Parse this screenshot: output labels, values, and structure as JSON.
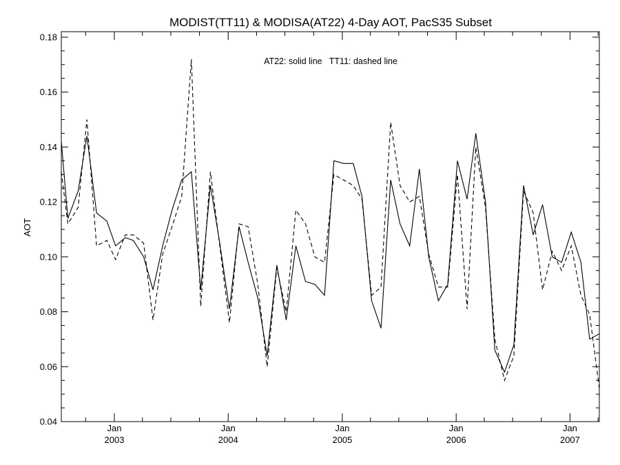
{
  "chart_data": {
    "type": "line",
    "title": "MODIST(TT11) & MODISA(AT22) 4-Day AOT, PacS35 Subset",
    "annotation": "AT22: solid line   TT11: dashed line",
    "xlabel": "",
    "ylabel": "AOT",
    "xlim": [
      "2002-07-15",
      "2007-04-05"
    ],
    "ylim": [
      0.04,
      0.182
    ],
    "yticks": [
      0.04,
      0.06,
      0.08,
      0.1,
      0.12,
      0.14,
      0.16,
      0.18
    ],
    "ytick_labels": [
      "0.04",
      "0.06",
      "0.08",
      "0.10",
      "0.12",
      "0.14",
      "0.16",
      "0.18"
    ],
    "xticks": [
      {
        "date": "2003-01-01",
        "month": "Jan",
        "year": "2003"
      },
      {
        "date": "2004-01-01",
        "month": "Jan",
        "year": "2004"
      },
      {
        "date": "2005-01-01",
        "month": "Jan",
        "year": "2005"
      },
      {
        "date": "2006-01-01",
        "month": "Jan",
        "year": "2006"
      },
      {
        "date": "2007-01-01",
        "month": "Jan",
        "year": "2007"
      }
    ],
    "grid": false,
    "series": [
      {
        "name": "AT22",
        "style": "solid",
        "color": "#000000",
        "x": [
          "2002-07-15",
          "2002-08-05",
          "2002-09-07",
          "2002-10-05",
          "2002-11-05",
          "2002-12-08",
          "2003-01-05",
          "2003-02-05",
          "2003-03-03",
          "2003-04-05",
          "2003-05-05",
          "2003-06-05",
          "2003-07-05",
          "2003-08-05",
          "2003-09-05",
          "2003-10-05",
          "2003-11-05",
          "2003-12-05",
          "2004-01-05",
          "2004-02-05",
          "2004-03-05",
          "2004-04-05",
          "2004-05-05",
          "2004-06-05",
          "2004-07-05",
          "2004-08-05",
          "2004-09-05",
          "2004-10-05",
          "2004-11-05",
          "2004-12-05",
          "2005-01-05",
          "2005-02-05",
          "2005-03-05",
          "2005-04-05",
          "2005-05-05",
          "2005-06-05",
          "2005-07-05",
          "2005-08-05",
          "2005-09-05",
          "2005-10-05",
          "2005-11-05",
          "2005-12-05",
          "2006-01-05",
          "2006-02-05",
          "2006-03-05",
          "2006-04-05",
          "2006-05-05",
          "2006-06-05",
          "2006-07-05",
          "2006-08-05",
          "2006-09-05",
          "2006-10-05",
          "2006-11-05",
          "2006-12-05",
          "2007-01-05",
          "2007-02-05",
          "2007-03-05",
          "2007-04-05"
        ],
        "y": [
          0.142,
          0.114,
          0.124,
          0.144,
          0.116,
          0.113,
          0.104,
          0.107,
          0.106,
          0.1,
          0.088,
          0.104,
          0.117,
          0.128,
          0.131,
          0.088,
          0.126,
          0.105,
          0.081,
          0.111,
          0.098,
          0.085,
          0.064,
          0.097,
          0.077,
          0.104,
          0.091,
          0.09,
          0.086,
          0.135,
          0.134,
          0.134,
          0.122,
          0.084,
          0.074,
          0.128,
          0.112,
          0.104,
          0.132,
          0.1,
          0.084,
          0.09,
          0.135,
          0.121,
          0.145,
          0.12,
          0.066,
          0.058,
          0.068,
          0.126,
          0.108,
          0.119,
          0.1,
          0.098,
          0.109,
          0.098,
          0.07,
          0.072
        ]
      },
      {
        "name": "TT11",
        "style": "dashed",
        "color": "#000000",
        "x": [
          "2002-07-15",
          "2002-08-05",
          "2002-09-07",
          "2002-10-05",
          "2002-11-05",
          "2002-12-08",
          "2003-01-05",
          "2003-02-05",
          "2003-03-03",
          "2003-04-05",
          "2003-05-05",
          "2003-06-05",
          "2003-07-05",
          "2003-08-05",
          "2003-09-05",
          "2003-10-05",
          "2003-11-05",
          "2003-12-05",
          "2004-01-05",
          "2004-02-05",
          "2004-03-05",
          "2004-04-05",
          "2004-05-05",
          "2004-06-05",
          "2004-07-05",
          "2004-08-05",
          "2004-09-05",
          "2004-10-05",
          "2004-11-05",
          "2004-12-05",
          "2005-01-05",
          "2005-02-05",
          "2005-03-05",
          "2005-04-05",
          "2005-05-05",
          "2005-06-05",
          "2005-07-05",
          "2005-08-05",
          "2005-09-05",
          "2005-10-05",
          "2005-11-05",
          "2005-12-05",
          "2006-01-05",
          "2006-02-05",
          "2006-03-05",
          "2006-04-05",
          "2006-05-05",
          "2006-06-05",
          "2006-07-05",
          "2006-08-05",
          "2006-09-05",
          "2006-10-05",
          "2006-11-05",
          "2006-12-05",
          "2007-01-05",
          "2007-02-05",
          "2007-03-05",
          "2007-04-05"
        ],
        "y": [
          0.131,
          0.112,
          0.118,
          0.15,
          0.104,
          0.106,
          0.099,
          0.108,
          0.108,
          0.105,
          0.077,
          0.101,
          0.111,
          0.122,
          0.172,
          0.082,
          0.131,
          0.104,
          0.076,
          0.112,
          0.111,
          0.09,
          0.06,
          0.096,
          0.08,
          0.117,
          0.112,
          0.1,
          0.098,
          0.13,
          0.128,
          0.126,
          0.121,
          0.086,
          0.089,
          0.149,
          0.126,
          0.12,
          0.122,
          0.101,
          0.089,
          0.089,
          0.13,
          0.081,
          0.14,
          0.118,
          0.07,
          0.055,
          0.064,
          0.124,
          0.116,
          0.088,
          0.102,
          0.095,
          0.104,
          0.086,
          0.079,
          0.052
        ]
      }
    ]
  }
}
